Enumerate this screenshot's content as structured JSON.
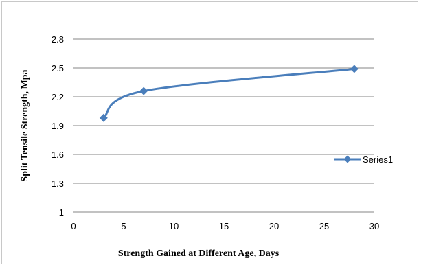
{
  "chart_data": {
    "type": "line",
    "title": "",
    "xlabel": "Strength  Gained at Different  Age, Days",
    "ylabel": "Split Tensile  Strength, Mpa",
    "xlim": [
      0,
      30
    ],
    "ylim": [
      1,
      2.8
    ],
    "x_ticks": [
      0,
      5,
      10,
      15,
      20,
      25,
      30
    ],
    "y_ticks": [
      1,
      1.3,
      1.6,
      1.9,
      2.2,
      2.5,
      2.8
    ],
    "y_tick_labels": [
      "1",
      "1.3",
      "1.6",
      "1.9",
      "2.2",
      "2.5",
      "2.8"
    ],
    "grid": "horizontal",
    "legend_position": "right",
    "smooth": true,
    "marker": "diamond",
    "series_color": "#4a7ebb",
    "series": [
      {
        "name": "Series1",
        "x": [
          3,
          7,
          28
        ],
        "y": [
          1.98,
          2.26,
          2.49
        ]
      }
    ]
  }
}
